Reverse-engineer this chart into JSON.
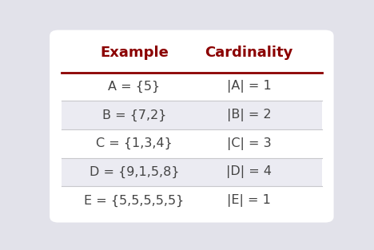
{
  "title_col1": "Example",
  "title_col2": "Cardinality",
  "rows": [
    {
      "example": "A = {5}",
      "cardinality": "|A| = 1"
    },
    {
      "example": "B = {7,2}",
      "cardinality": "|B| = 2"
    },
    {
      "example": "C = {1,3,4}",
      "cardinality": "|C| = 3"
    },
    {
      "example": "D = {9,1,5,8}",
      "cardinality": "|D| = 4"
    },
    {
      "example": "E = {5,5,5,5,5}",
      "cardinality": "|E| = 1"
    }
  ],
  "header_color": "#8B0000",
  "header_line_color": "#8B0000",
  "row_divider_color": "#c8c8cc",
  "text_color": "#444444",
  "title_fontsize": 13,
  "cell_fontsize": 11.5,
  "fig_bg": "#e2e2ea",
  "card_bg": "#ffffff",
  "alt_row_color": "#ebebf2"
}
